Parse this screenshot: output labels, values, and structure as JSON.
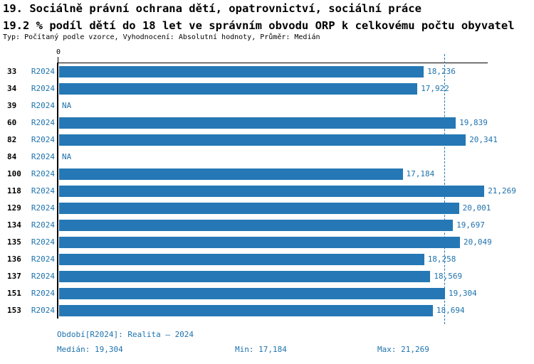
{
  "title": "19. Sociálně právní ochrana dětí, opatrovnictví, sociální práce",
  "subtitle": "19.2 % podíl dětí do 18 let ve správním obvodu ORP k celkovému počtu obyvatel",
  "meta": "Typ: Počítaný podle vzorce, Vyhodnocení: Absolutní hodnoty, Průměr: Medián",
  "colors": {
    "bar": "#2578b5",
    "blue_text": "#1e72ad",
    "axis": "#000000",
    "median_line": "#2578b5"
  },
  "chart_data": {
    "type": "bar",
    "orientation": "horizontal",
    "title": "19. Sociálně právní ochrana dětí, opatrovnictví, sociální práce",
    "xlabel": "",
    "ylabel": "",
    "x_origin_tick_label": "0",
    "axis_max": 21475,
    "grid": false,
    "period_label": "R2024",
    "categories": [
      "33",
      "34",
      "39",
      "60",
      "82",
      "84",
      "100",
      "118",
      "129",
      "134",
      "135",
      "136",
      "137",
      "151",
      "153"
    ],
    "values": [
      18236,
      17922,
      null,
      19839,
      20341,
      null,
      17184,
      21269,
      20001,
      19697,
      20049,
      18258,
      18569,
      19304,
      18694
    ],
    "value_labels": [
      "18,236",
      "17,922",
      "NA",
      "19,839",
      "20,341",
      "NA",
      "17,184",
      "21,269",
      "20,001",
      "19,697",
      "20,049",
      "18,258",
      "18,569",
      "19,304",
      "18,694"
    ],
    "median": 19304,
    "median_label": "19,304",
    "min": 17184,
    "max": 21269,
    "na_text": "NA"
  },
  "footer": {
    "period": "Období[R2024]: Realita – 2024",
    "median": "Medián: 19,304",
    "min": "Min: 17,184",
    "max": "Max: 21,269"
  }
}
